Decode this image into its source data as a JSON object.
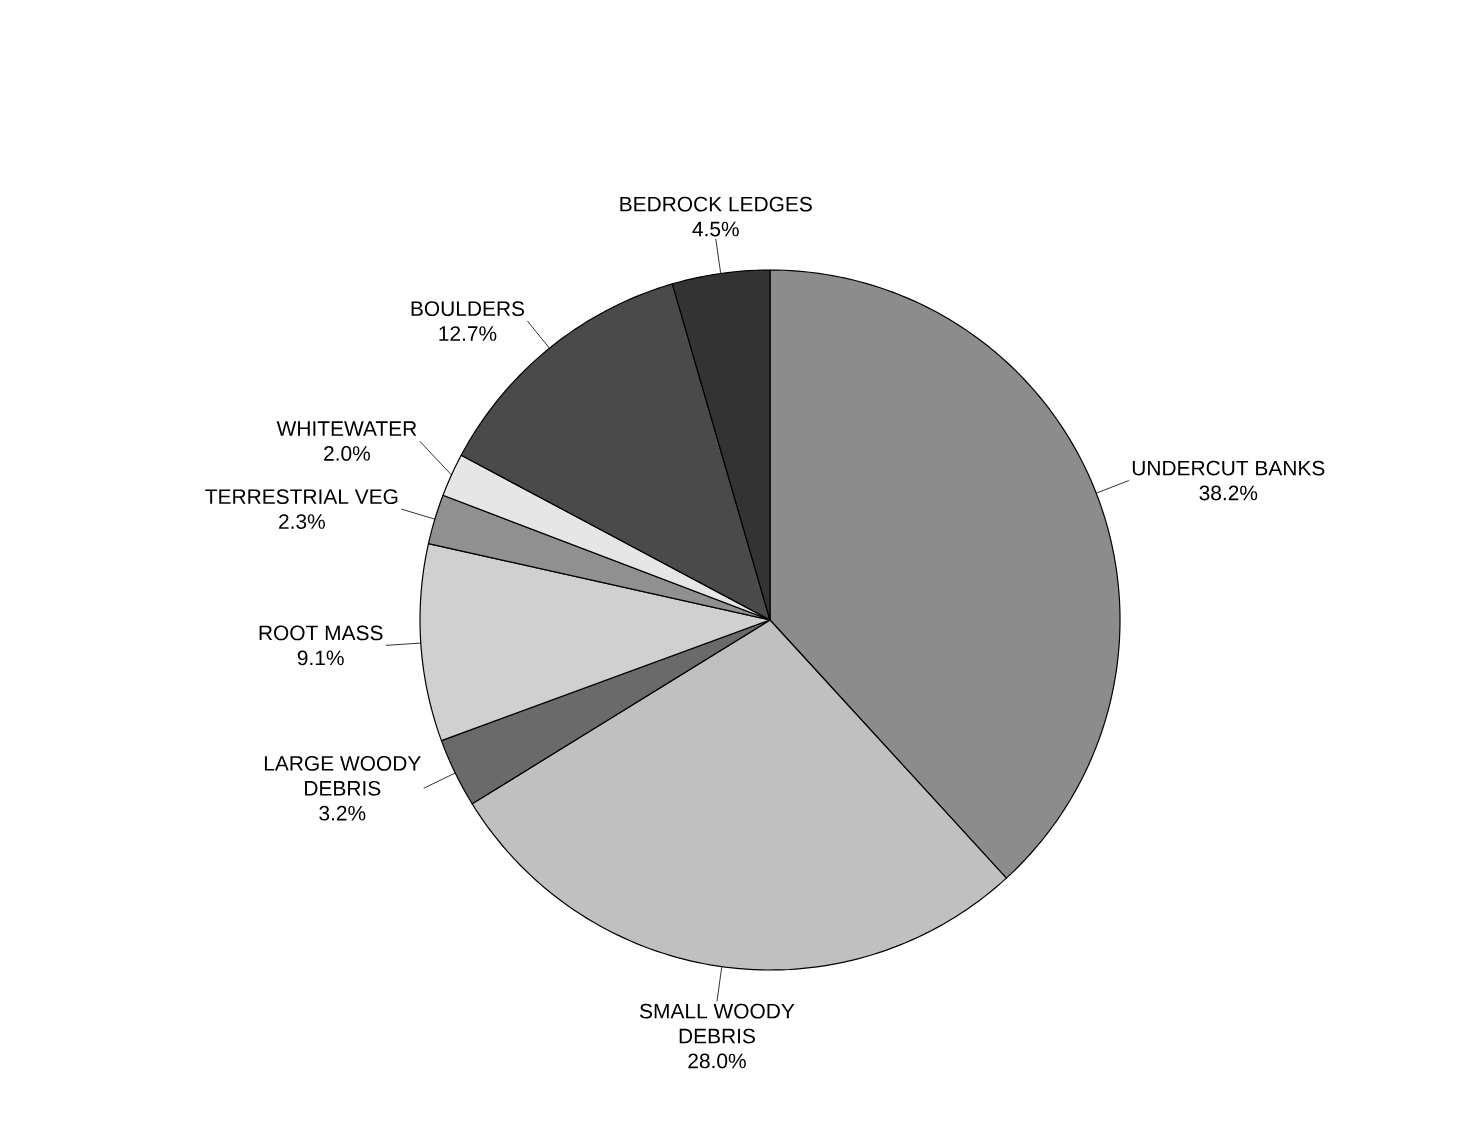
{
  "chart_data": {
    "type": "pie",
    "categories": [
      "UNDERCUT BANKS",
      "SMALL WOODY DEBRIS",
      "LARGE WOODY DEBRIS",
      "ROOT MASS",
      "TERRESTRIAL VEG",
      "WHITEWATER",
      "BOULDERS",
      "BEDROCK LEDGES"
    ],
    "values": [
      38.2,
      28.0,
      3.2,
      9.1,
      2.3,
      2.0,
      12.7,
      4.5
    ],
    "value_labels": [
      "38.2%",
      "28.0%",
      "3.2%",
      "9.1%",
      "2.3%",
      "2.0%",
      "12.7%",
      "4.5%"
    ],
    "colors": [
      "#8c8c8c",
      "#c0c0c0",
      "#6a6a6a",
      "#d0d0d0",
      "#909090",
      "#e6e6e6",
      "#4a4a4a",
      "#333333"
    ]
  }
}
